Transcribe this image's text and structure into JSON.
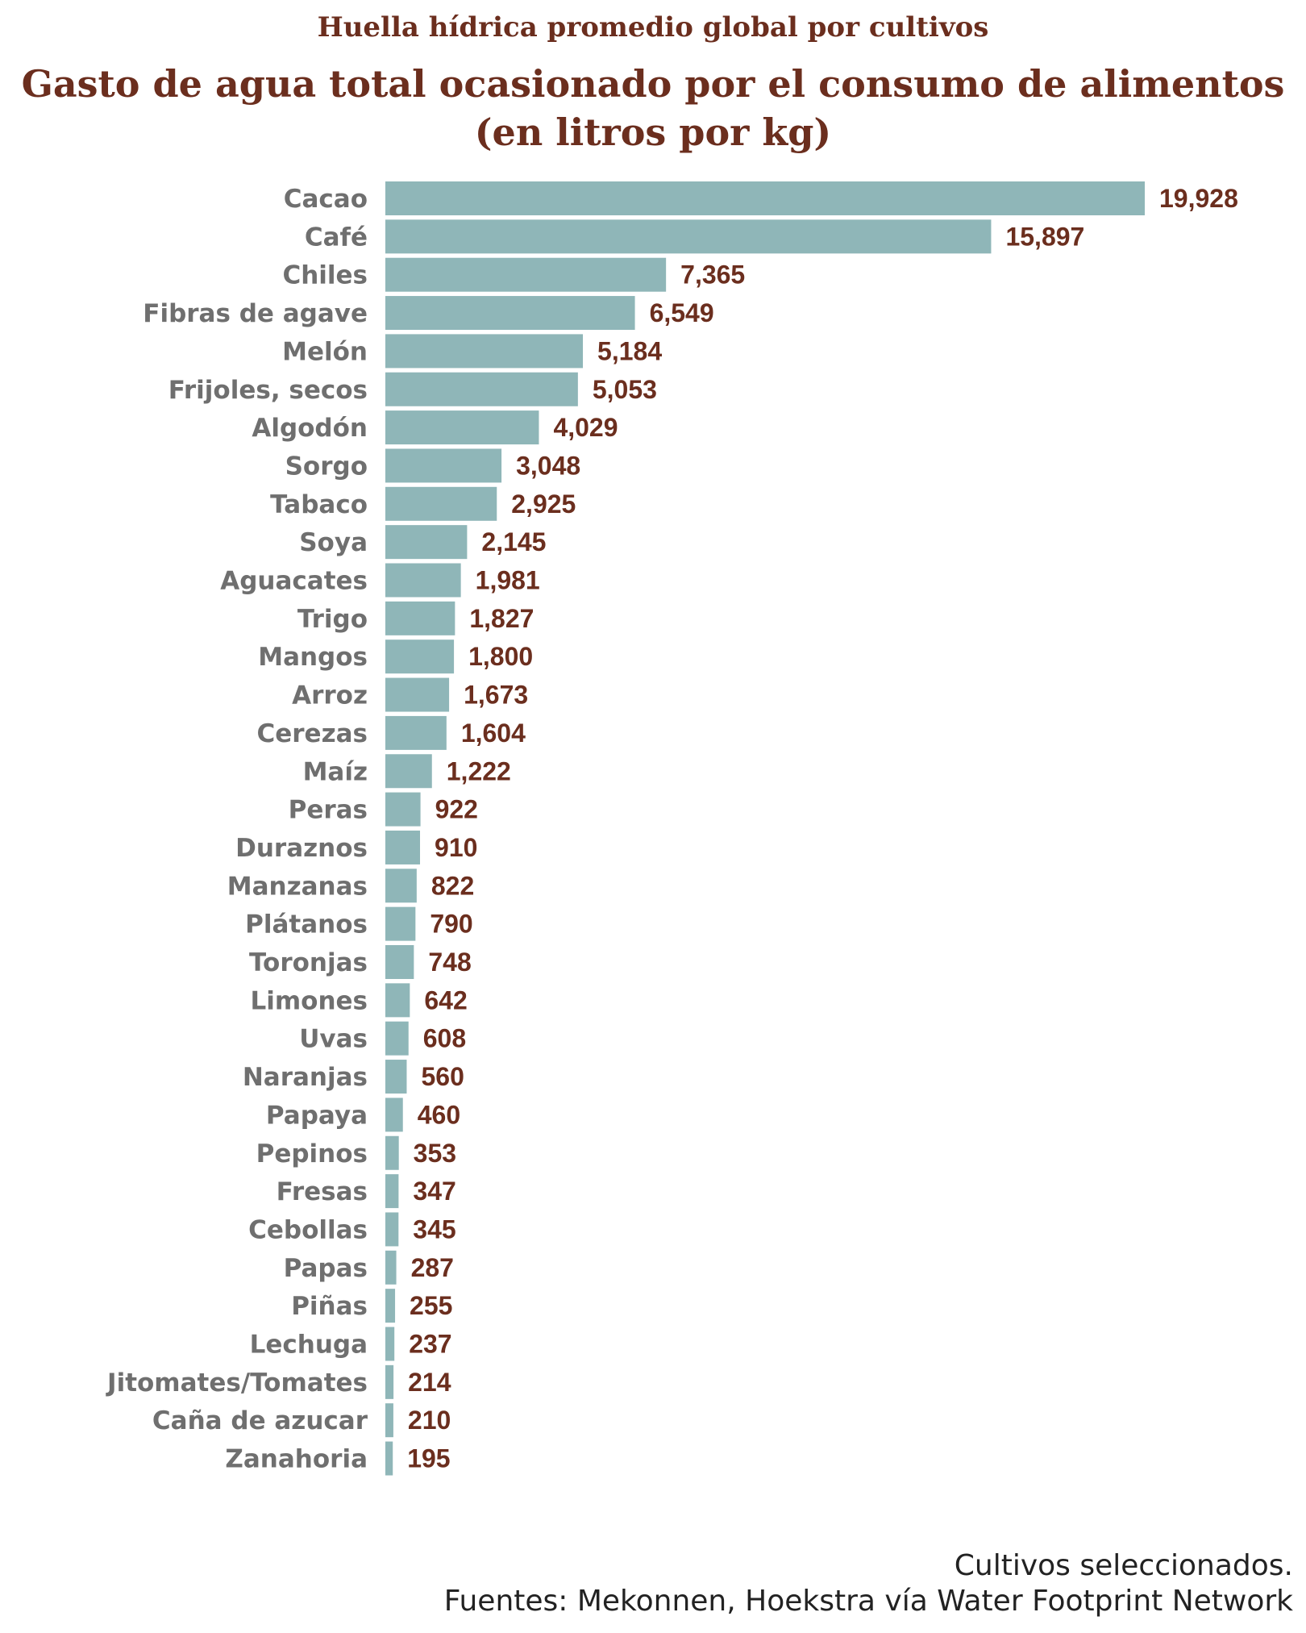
{
  "colors": {
    "bar": "#8fb6b8",
    "title": "#6b2e1e",
    "value": "#6b2e1e",
    "category": "#6f6f6f"
  },
  "chart_data": {
    "type": "bar",
    "orientation": "horizontal",
    "subtitle": "Huella hídrica promedio global por cultivos",
    "title_lines": [
      "Gasto de agua total ocasionado por el consumo de alimentos",
      "(en litros por kg)"
    ],
    "categories": [
      "Cacao",
      "Café",
      "Chiles",
      "Fibras de agave",
      "Melón",
      "Frijoles, secos",
      "Algodón",
      "Sorgo",
      "Tabaco",
      "Soya",
      "Aguacates",
      "Trigo",
      "Mangos",
      "Arroz",
      "Cerezas",
      "Maíz",
      "Peras",
      "Duraznos",
      "Manzanas",
      "Plátanos",
      "Toronjas",
      "Limones",
      "Uvas",
      "Naranjas",
      "Papaya",
      "Pepinos",
      "Fresas",
      "Cebollas",
      "Papas",
      "Piñas",
      "Lechuga",
      "Jitomates/Tomates",
      "Caña de azucar",
      "Zanahoria"
    ],
    "values": [
      19928,
      15897,
      7365,
      6549,
      5184,
      5053,
      4029,
      3048,
      2925,
      2145,
      1981,
      1827,
      1800,
      1673,
      1604,
      1222,
      922,
      910,
      822,
      790,
      748,
      642,
      608,
      560,
      460,
      353,
      347,
      345,
      287,
      255,
      237,
      214,
      210,
      195
    ],
    "value_labels": [
      "19,928",
      "15,897",
      "7,365",
      "6,549",
      "5,184",
      "5,053",
      "4,029",
      "3,048",
      "2,925",
      "2,145",
      "1,981",
      "1,827",
      "1,800",
      "1,673",
      "1,604",
      "1,222",
      "922",
      "910",
      "822",
      "790",
      "748",
      "642",
      "608",
      "560",
      "460",
      "353",
      "347",
      "345",
      "287",
      "255",
      "237",
      "214",
      "210",
      "195"
    ],
    "xlim": [
      0,
      19928
    ],
    "grid": false,
    "legend": "none"
  },
  "footer": {
    "line1": "Cultivos seleccionados.",
    "line2": "Fuentes: Mekonnen, Hoekstra vía Water Footprint Network"
  }
}
